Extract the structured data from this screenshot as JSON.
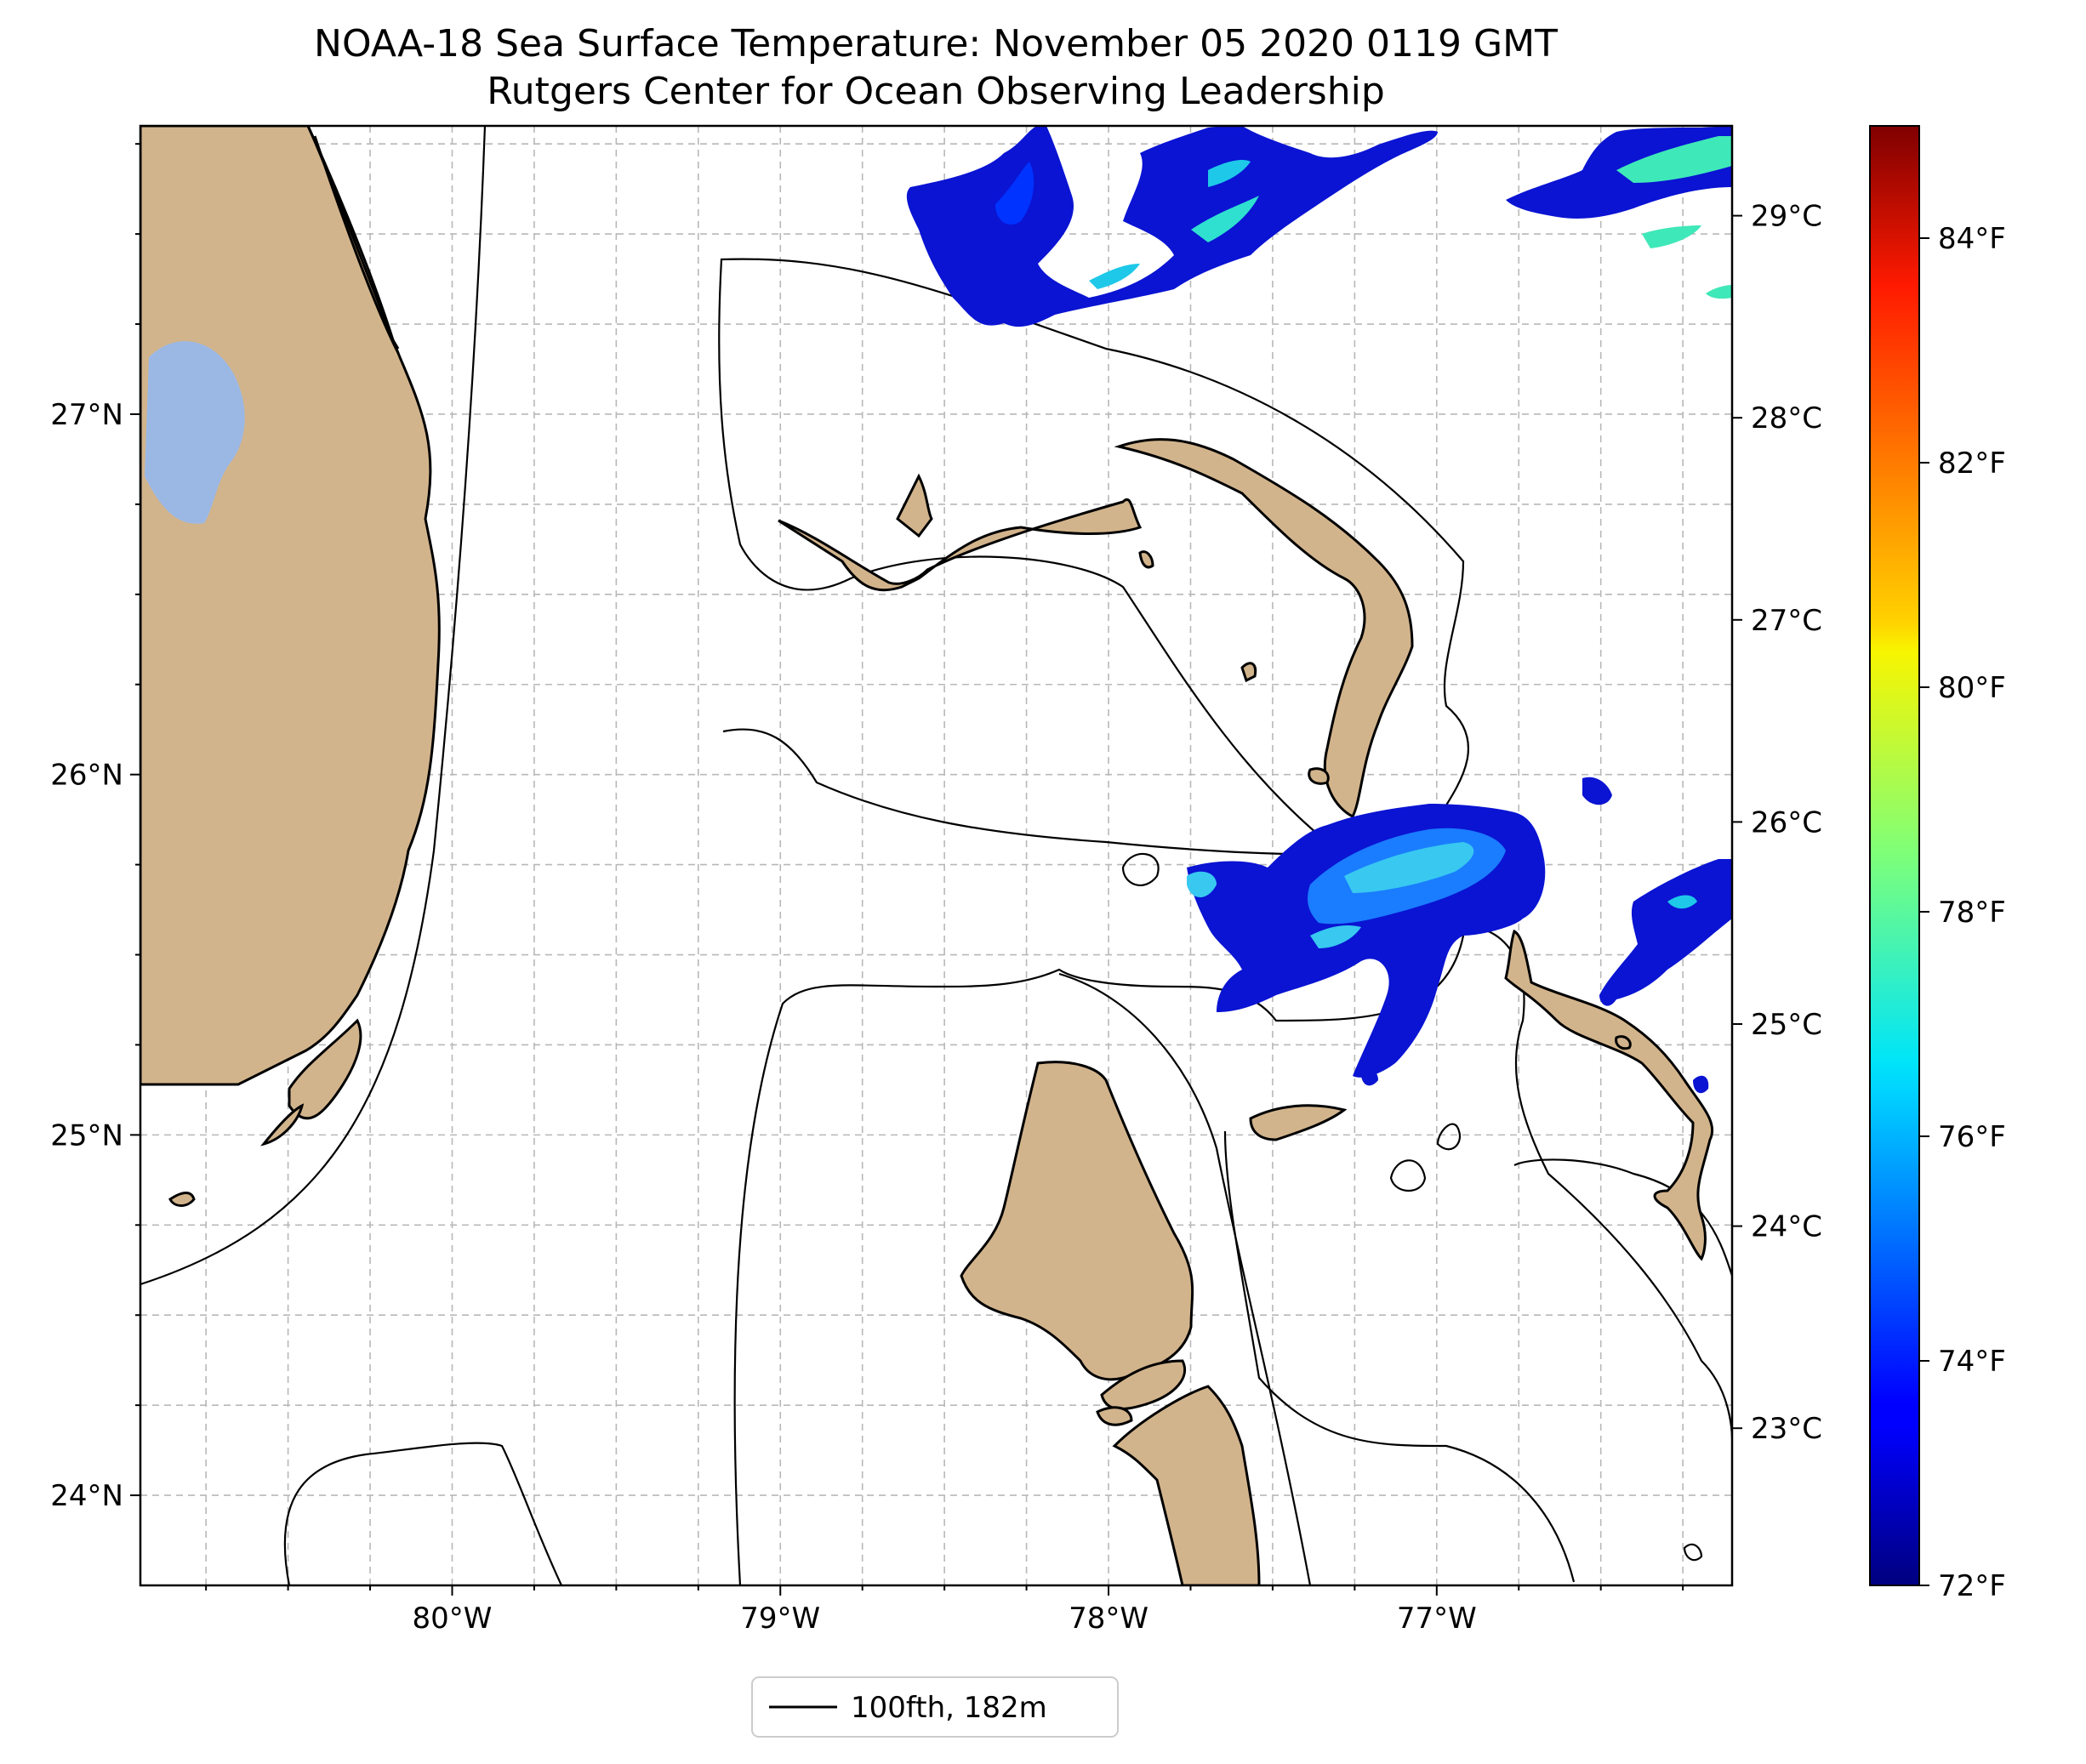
{
  "title": {
    "line1": "NOAA-18 Sea Surface Temperature: November 05 2020 0119 GMT",
    "line2": "Rutgers Center for Ocean Observing Leadership"
  },
  "map": {
    "lon_range": [
      -80.95,
      -76.1
    ],
    "lat_range": [
      23.75,
      27.8
    ],
    "lon_ticks": [
      {
        "value": -80,
        "label": "80°W"
      },
      {
        "value": -79,
        "label": "79°W"
      },
      {
        "value": -78,
        "label": "78°W"
      },
      {
        "value": -77,
        "label": "77°W"
      }
    ],
    "lat_ticks": [
      {
        "value": 24,
        "label": "24°N"
      },
      {
        "value": 25,
        "label": "25°N"
      },
      {
        "value": 26,
        "label": "26°N"
      },
      {
        "value": 27,
        "label": "27°N"
      }
    ],
    "land_color": "#d2b48c",
    "lake_color": "#9bb8e5",
    "grid": true
  },
  "legend": {
    "label": "100fth, 182m",
    "placement": "bottom-center"
  },
  "colorbar": {
    "colormap": "jet",
    "range_f": [
      72,
      85
    ],
    "celsius_ticks": [
      {
        "value": 29,
        "label": "29°C"
      },
      {
        "value": 28,
        "label": "28°C"
      },
      {
        "value": 27,
        "label": "27°C"
      },
      {
        "value": 26,
        "label": "26°C"
      },
      {
        "value": 25,
        "label": "25°C"
      },
      {
        "value": 24,
        "label": "24°C"
      },
      {
        "value": 23,
        "label": "23°C"
      }
    ],
    "fahrenheit_ticks": [
      {
        "value": 84,
        "label": "84°F"
      },
      {
        "value": 82,
        "label": "82°F"
      },
      {
        "value": 80,
        "label": "80°F"
      },
      {
        "value": 78,
        "label": "78°F"
      },
      {
        "value": 76,
        "label": "76°F"
      },
      {
        "value": 74,
        "label": "74°F"
      },
      {
        "value": 72,
        "label": "72°F"
      }
    ]
  }
}
